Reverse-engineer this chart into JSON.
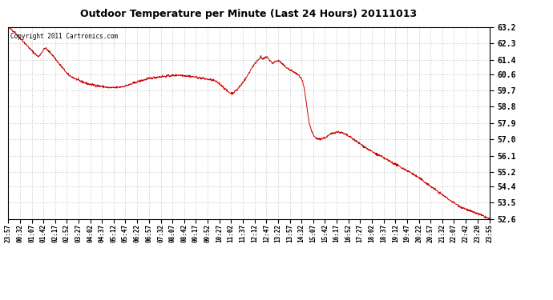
{
  "title": "Outdoor Temperature per Minute (Last 24 Hours) 20111013",
  "copyright_text": "Copyright 2011 Cartronics.com",
  "line_color": "#cc0000",
  "background_color": "#ffffff",
  "plot_bg_color": "#ffffff",
  "grid_color": "#bbbbbb",
  "y_ticks": [
    52.6,
    53.5,
    54.4,
    55.2,
    56.1,
    57.0,
    57.9,
    58.8,
    59.7,
    60.6,
    61.4,
    62.3,
    63.2
  ],
  "y_min": 52.6,
  "y_max": 63.2,
  "x_labels": [
    "23:57",
    "00:32",
    "01:07",
    "01:42",
    "02:17",
    "02:52",
    "03:27",
    "04:02",
    "04:37",
    "05:12",
    "05:47",
    "06:22",
    "06:57",
    "07:32",
    "08:07",
    "08:42",
    "09:17",
    "09:52",
    "10:27",
    "11:02",
    "11:37",
    "12:12",
    "12:47",
    "13:22",
    "13:57",
    "14:32",
    "15:07",
    "15:42",
    "16:17",
    "16:52",
    "17:27",
    "18:02",
    "18:37",
    "19:12",
    "19:47",
    "20:22",
    "20:57",
    "21:32",
    "22:07",
    "22:42",
    "23:20",
    "23:55"
  ],
  "control_points": [
    [
      0,
      63.2
    ],
    [
      20,
      62.9
    ],
    [
      45,
      62.4
    ],
    [
      70,
      61.9
    ],
    [
      90,
      61.55
    ],
    [
      110,
      62.05
    ],
    [
      130,
      61.7
    ],
    [
      155,
      61.1
    ],
    [
      180,
      60.55
    ],
    [
      210,
      60.25
    ],
    [
      240,
      60.05
    ],
    [
      270,
      59.95
    ],
    [
      300,
      59.85
    ],
    [
      320,
      59.85
    ],
    [
      340,
      59.9
    ],
    [
      360,
      60.0
    ],
    [
      390,
      60.2
    ],
    [
      420,
      60.35
    ],
    [
      450,
      60.45
    ],
    [
      480,
      60.5
    ],
    [
      510,
      60.55
    ],
    [
      535,
      60.5
    ],
    [
      555,
      60.45
    ],
    [
      570,
      60.4
    ],
    [
      585,
      60.35
    ],
    [
      600,
      60.3
    ],
    [
      615,
      60.25
    ],
    [
      630,
      60.1
    ],
    [
      645,
      59.85
    ],
    [
      655,
      59.65
    ],
    [
      665,
      59.55
    ],
    [
      670,
      59.55
    ],
    [
      675,
      59.6
    ],
    [
      685,
      59.75
    ],
    [
      700,
      60.1
    ],
    [
      715,
      60.5
    ],
    [
      730,
      61.0
    ],
    [
      745,
      61.35
    ],
    [
      755,
      61.55
    ],
    [
      762,
      61.4
    ],
    [
      768,
      61.5
    ],
    [
      775,
      61.55
    ],
    [
      782,
      61.35
    ],
    [
      790,
      61.2
    ],
    [
      795,
      61.25
    ],
    [
      800,
      61.3
    ],
    [
      808,
      61.35
    ],
    [
      815,
      61.25
    ],
    [
      822,
      61.1
    ],
    [
      830,
      61.0
    ],
    [
      840,
      60.85
    ],
    [
      850,
      60.75
    ],
    [
      860,
      60.65
    ],
    [
      870,
      60.5
    ],
    [
      875,
      60.4
    ],
    [
      880,
      60.2
    ],
    [
      885,
      59.8
    ],
    [
      890,
      59.2
    ],
    [
      895,
      58.5
    ],
    [
      900,
      57.9
    ],
    [
      908,
      57.4
    ],
    [
      915,
      57.15
    ],
    [
      922,
      57.05
    ],
    [
      930,
      57.0
    ],
    [
      940,
      57.05
    ],
    [
      950,
      57.1
    ],
    [
      958,
      57.2
    ],
    [
      965,
      57.3
    ],
    [
      972,
      57.35
    ],
    [
      980,
      57.4
    ],
    [
      988,
      57.4
    ],
    [
      995,
      57.38
    ],
    [
      1005,
      57.3
    ],
    [
      1015,
      57.2
    ],
    [
      1025,
      57.1
    ],
    [
      1040,
      56.9
    ],
    [
      1060,
      56.65
    ],
    [
      1080,
      56.4
    ],
    [
      1110,
      56.1
    ],
    [
      1140,
      55.8
    ],
    [
      1170,
      55.5
    ],
    [
      1200,
      55.2
    ],
    [
      1230,
      54.85
    ],
    [
      1260,
      54.45
    ],
    [
      1290,
      54.05
    ],
    [
      1320,
      53.65
    ],
    [
      1350,
      53.3
    ],
    [
      1380,
      53.05
    ],
    [
      1410,
      52.85
    ],
    [
      1440,
      52.6
    ]
  ]
}
